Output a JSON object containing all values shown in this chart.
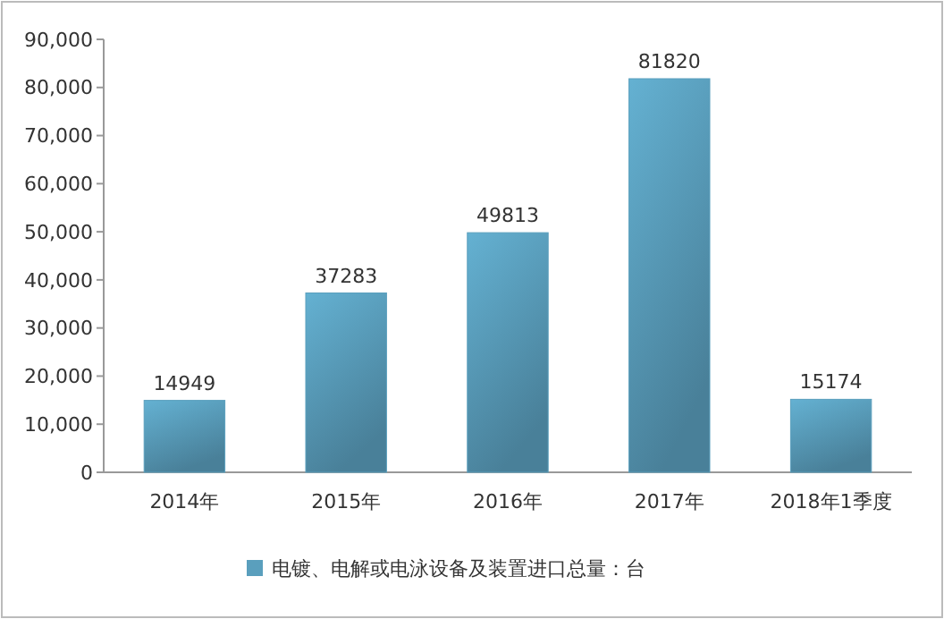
{
  "chart_data": {
    "type": "bar",
    "categories": [
      "2014年",
      "2015年",
      "2016年",
      "2017年",
      "2018年1季度"
    ],
    "series": [
      {
        "name": "电镀、电解或电泳设备及装置进口总量：台",
        "color": "#5a9fbd",
        "values": [
          14949,
          37283,
          49813,
          81820,
          15174
        ]
      }
    ],
    "ylim": [
      0,
      90000
    ],
    "yticks": [
      {
        "value": 0,
        "label": "0"
      },
      {
        "value": 10000,
        "label": "10,000"
      },
      {
        "value": 20000,
        "label": "20,000"
      },
      {
        "value": 30000,
        "label": "30,000"
      },
      {
        "value": 40000,
        "label": "40,000"
      },
      {
        "value": 50000,
        "label": "50,000"
      },
      {
        "value": 60000,
        "label": "60,000"
      },
      {
        "value": 70000,
        "label": "70,000"
      },
      {
        "value": 80000,
        "label": "80,000"
      },
      {
        "value": 90000,
        "label": "90,000"
      }
    ],
    "data_labels": true,
    "legend": "bottom",
    "grid": false
  }
}
